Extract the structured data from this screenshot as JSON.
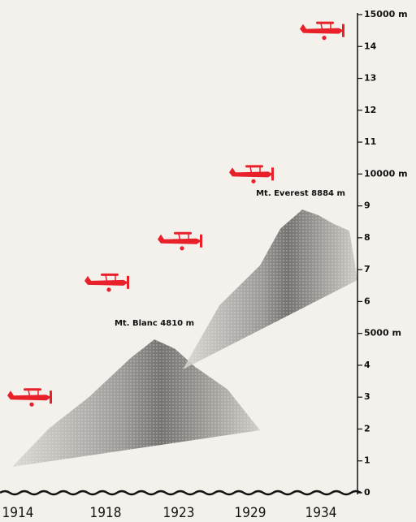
{
  "chart_data": {
    "type": "plane-altitude",
    "categories": [
      "1914",
      "1918",
      "1923",
      "1929",
      "1934"
    ],
    "values": [
      3.0,
      6.6,
      7.9,
      10.0,
      14.5
    ],
    "color": "#e8202a",
    "ylim": [
      0,
      15
    ],
    "yticks": [
      0,
      1,
      2,
      3,
      4,
      {
        "value": 5,
        "label": "5000 m"
      },
      6,
      7,
      8,
      9,
      {
        "value": 10,
        "label": "10000 m"
      },
      11,
      12,
      13,
      14,
      {
        "value": 15,
        "label": "15000 m"
      }
    ],
    "mountains": [
      {
        "label": "Mt. Blanc 4810 m",
        "height": 4.81
      },
      {
        "label": "Mt. Everest 8884 m",
        "height": 8.884
      }
    ]
  }
}
